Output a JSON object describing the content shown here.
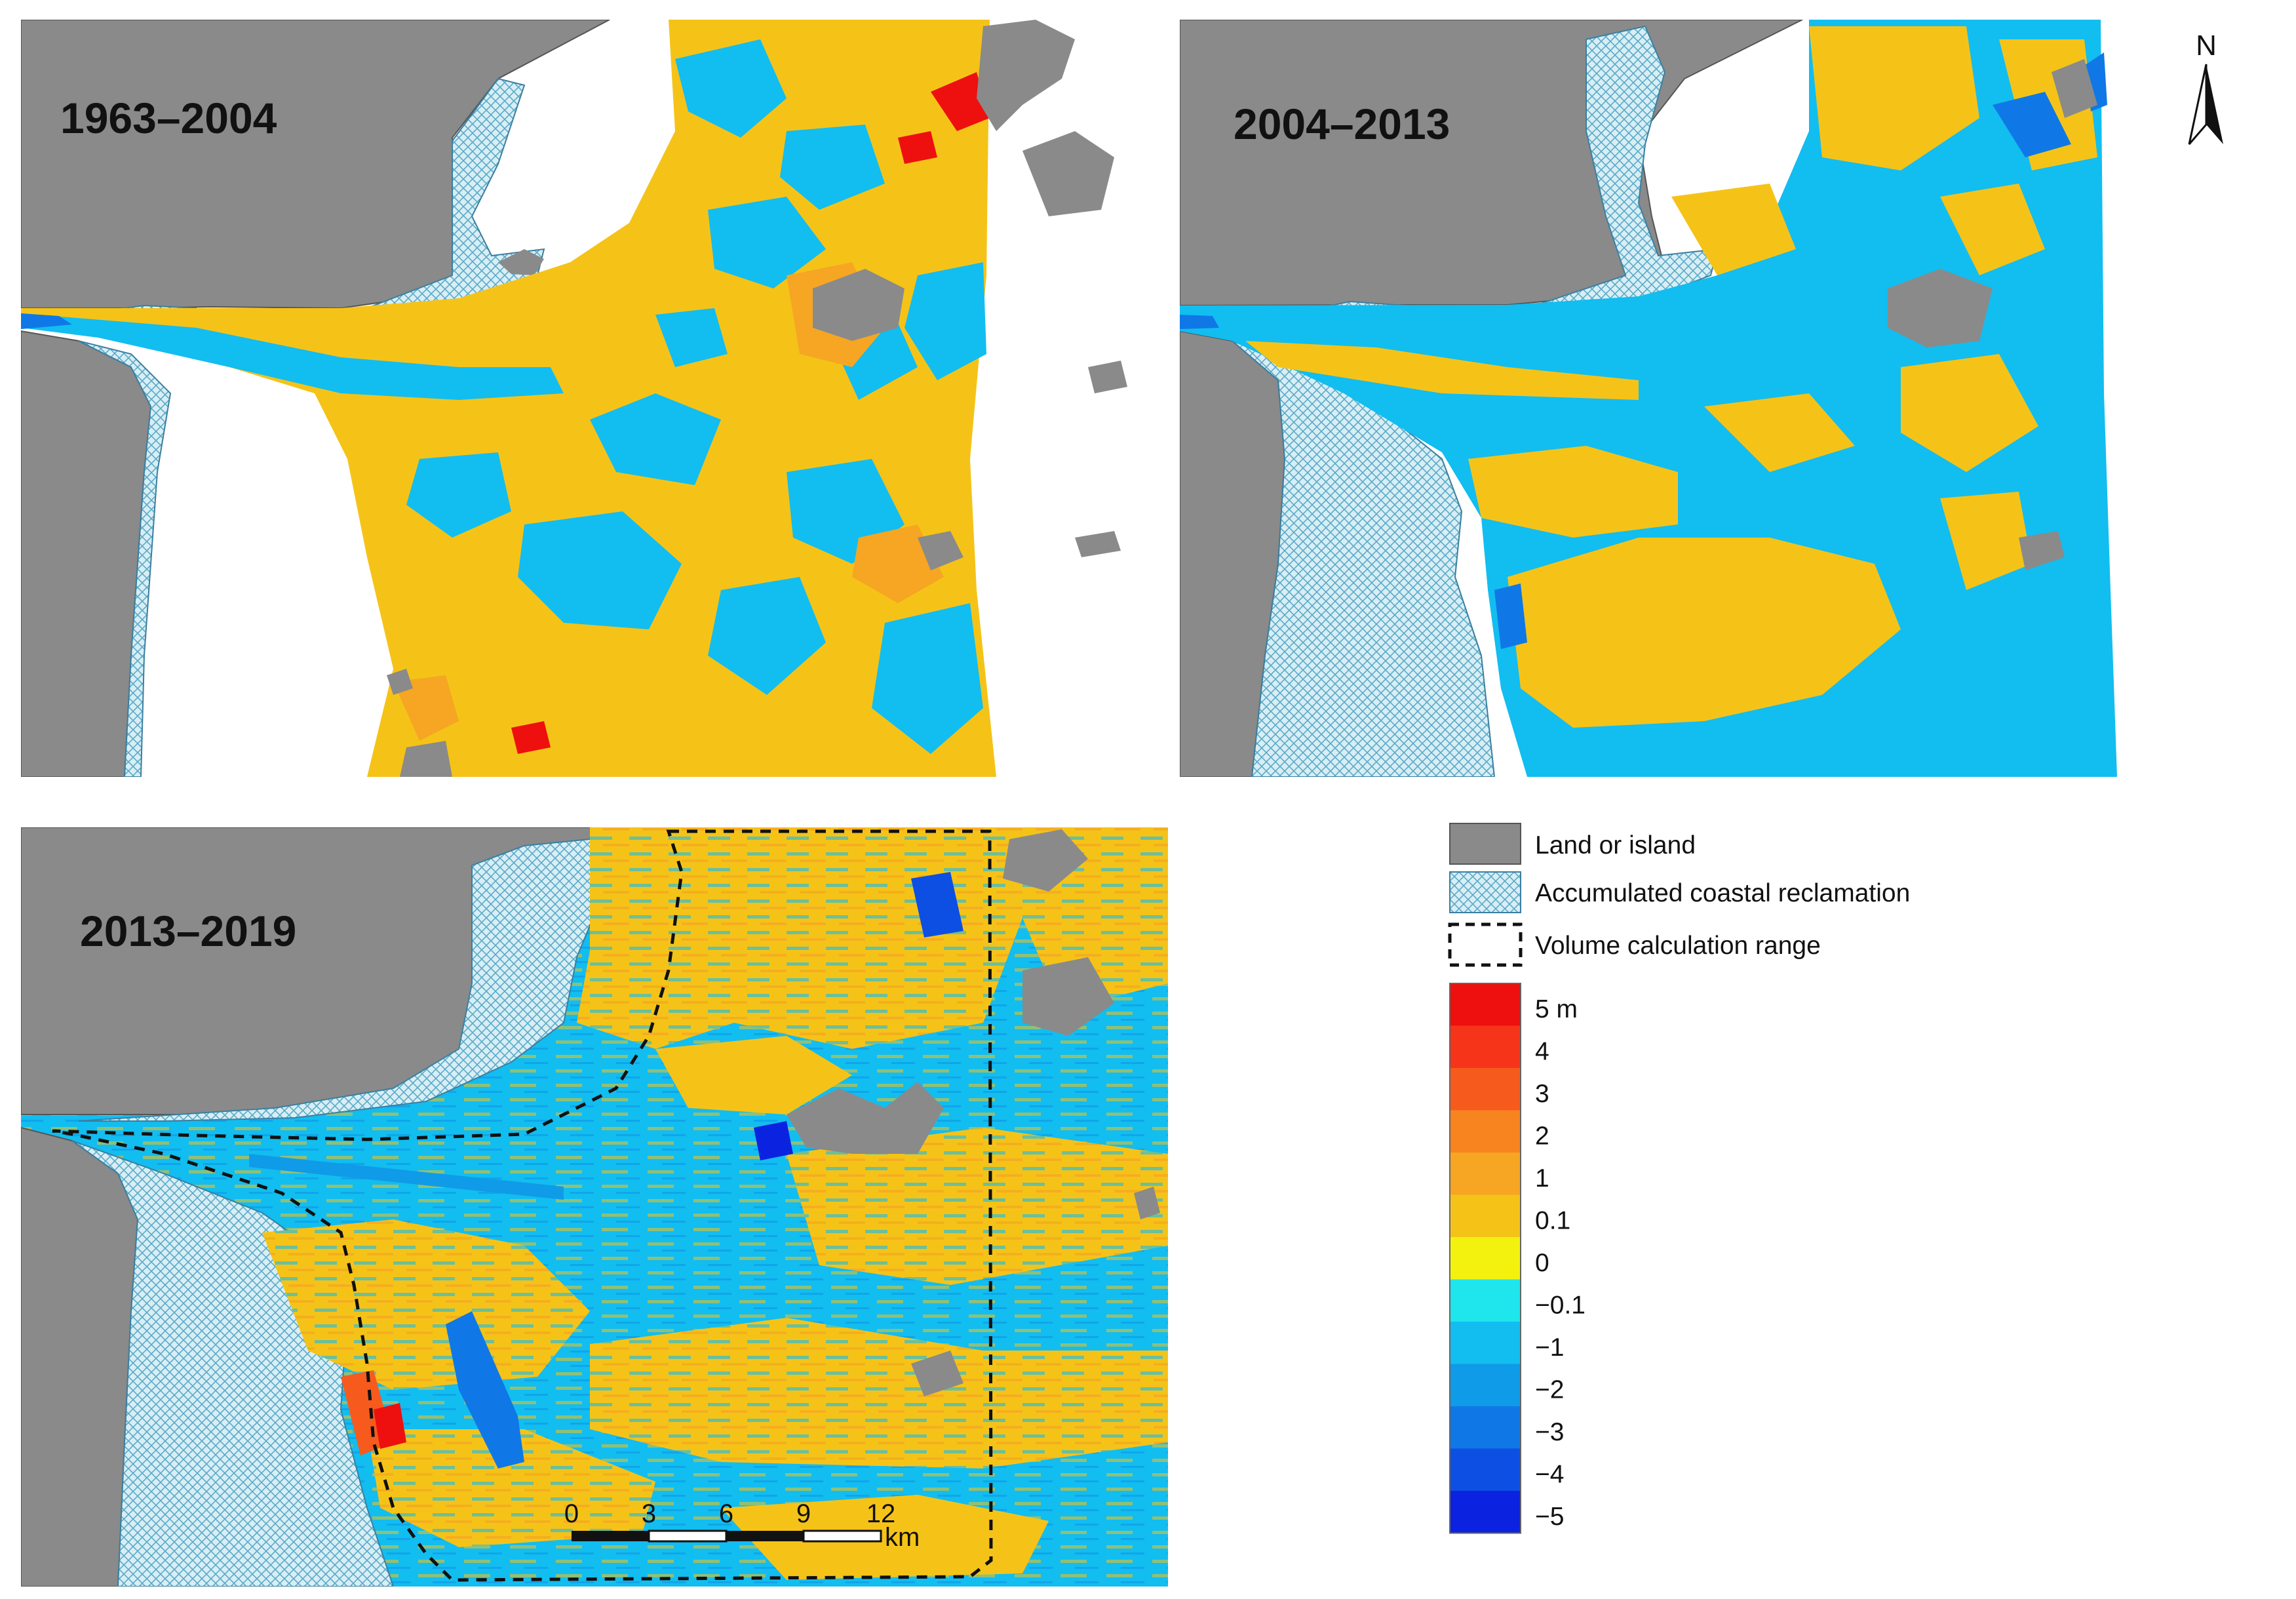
{
  "panels": [
    {
      "title": "1963–2004"
    },
    {
      "title": "2004–2013"
    },
    {
      "title": "2013–2019"
    }
  ],
  "north": {
    "label": "N"
  },
  "scale_bar": {
    "ticks": [
      "0",
      "3",
      "6",
      "9",
      "12"
    ],
    "unit": "km"
  },
  "legend": {
    "land_label": "Land or island",
    "reclamation_label": "Accumulated coastal reclamation",
    "volume_label": "Volume calculation range",
    "color_scale": [
      {
        "label": "5 m",
        "color": "#ee0f0f"
      },
      {
        "label": "4",
        "color": "#f5341a"
      },
      {
        "label": "3",
        "color": "#f75a1d"
      },
      {
        "label": "2",
        "color": "#f7841f"
      },
      {
        "label": "1",
        "color": "#f6a623"
      },
      {
        "label": "0.1",
        "color": "#f5c318"
      },
      {
        "label": "0",
        "color": "#f2f20e"
      },
      {
        "label": "−0.1",
        "color": "#1ee6ec"
      },
      {
        "label": "−1",
        "color": "#12bdf0"
      },
      {
        "label": "−2",
        "color": "#0f9be8"
      },
      {
        "label": "−3",
        "color": "#0f78e6"
      },
      {
        "label": "−4",
        "color": "#0d4fe3"
      },
      {
        "label": "−5",
        "color": "#0b23e0"
      }
    ]
  },
  "colors": {
    "land": "#8a8a8a",
    "reclamation": "#bfe3ee",
    "deposition": "#f5c318",
    "erosion": "#12bdf0"
  }
}
